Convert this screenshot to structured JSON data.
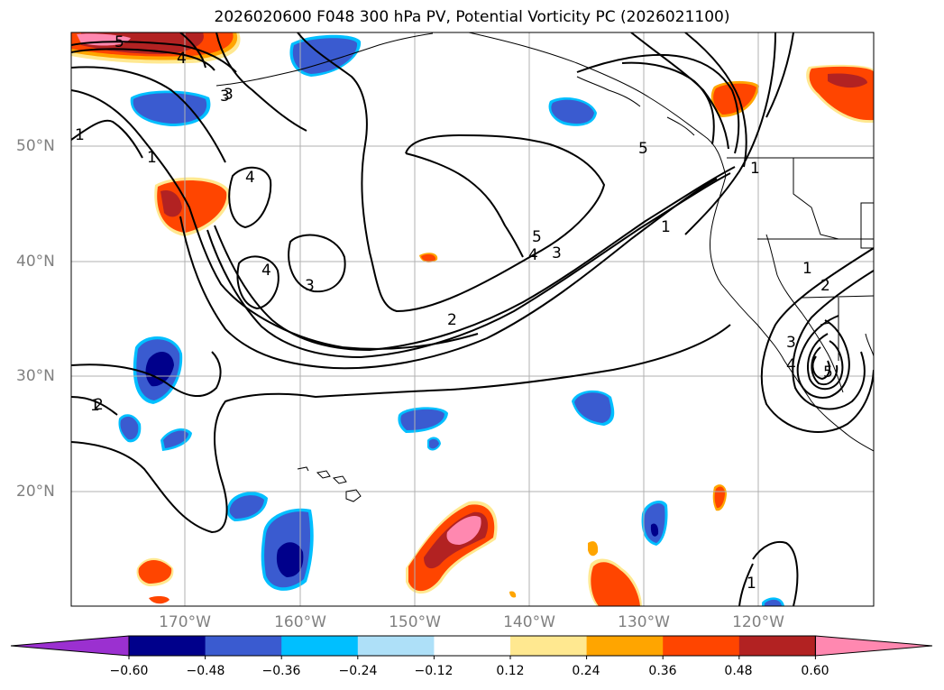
{
  "title": "2026020600 F048 300 hPa PV, Potential Vorticity PC (2026021100)",
  "lat_labels": [
    "50°N",
    "40°N",
    "30°N",
    "20°N"
  ],
  "lon_labels": [
    "170°W",
    "160°W",
    "150°W",
    "140°W",
    "130°W",
    "120°W"
  ],
  "contour_labels": [
    "5",
    "4",
    "3",
    "1",
    "1",
    "4",
    "4",
    "3",
    "1",
    "5",
    "4",
    "3",
    "2",
    "1",
    "2",
    "5",
    "1",
    "1",
    "2",
    "3",
    "4",
    "5",
    "1",
    "3"
  ],
  "colorbar": {
    "ticks": [
      "−0.60",
      "−0.48",
      "−0.36",
      "−0.24",
      "−0.12",
      "0.12",
      "0.24",
      "0.36",
      "0.48",
      "0.60"
    ],
    "colors": [
      "#9b30d0",
      "#00008b",
      "#3a5bd0",
      "#00bfff",
      "#aee0f8",
      "#ffffff",
      "#ffe890",
      "#ffa500",
      "#ff4500",
      "#b22222",
      "#ff88b0",
      "#ff88b0"
    ]
  }
}
